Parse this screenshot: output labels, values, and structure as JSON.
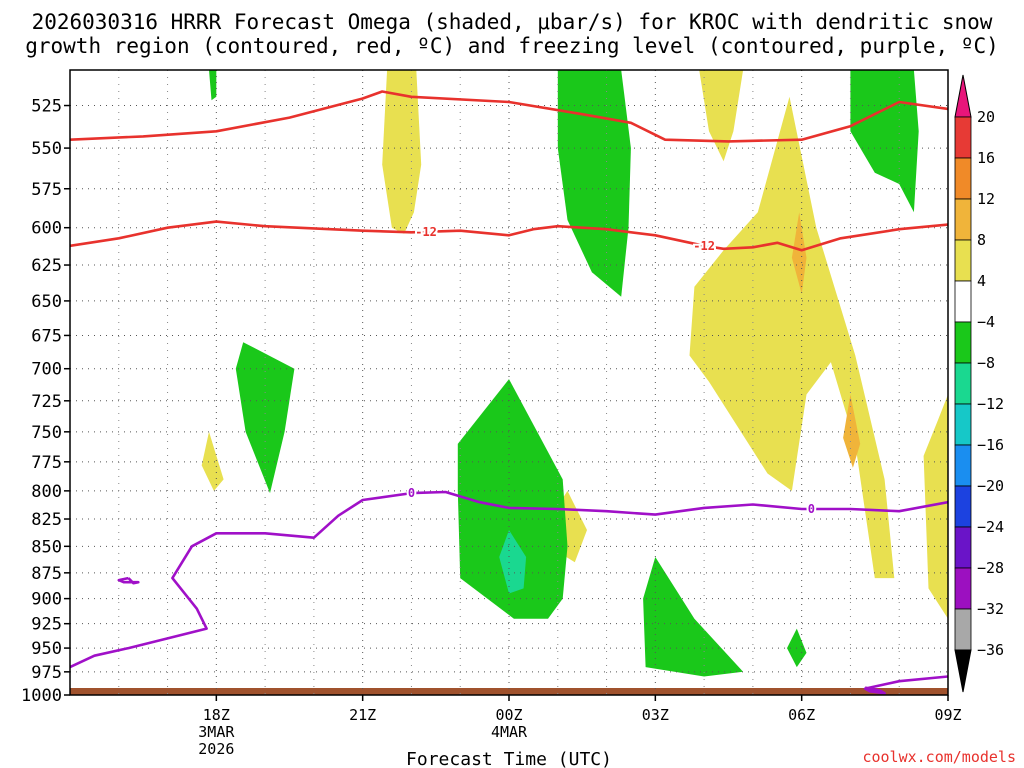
{
  "chart_data": {
    "type": "heatmap",
    "title_line1": "2026030316 HRRR Forecast Omega (shaded, μbar/s) for KROC with dendritic snow",
    "title_line2": "growth region (contoured, red, ºC) and freezing level (contoured, purple, ºC)",
    "xlabel": "Forecast Time (UTC)",
    "credit": "coolwx.com/models",
    "x_unit": "hours after 2026-03-03 15Z",
    "x_range": [
      0,
      18
    ],
    "y_unit": "hPa",
    "y_range": [
      1000,
      505
    ],
    "y_ticks": [
      525,
      550,
      575,
      600,
      625,
      650,
      675,
      700,
      725,
      750,
      775,
      800,
      825,
      850,
      875,
      900,
      925,
      950,
      975,
      1000
    ],
    "x_ticks": [
      {
        "x": 3,
        "lines": [
          "18Z",
          "3MAR",
          "2026"
        ]
      },
      {
        "x": 6,
        "lines": [
          "21Z"
        ]
      },
      {
        "x": 9,
        "lines": [
          "00Z",
          "4MAR"
        ]
      },
      {
        "x": 12,
        "lines": [
          "03Z"
        ]
      },
      {
        "x": 15,
        "lines": [
          "06Z"
        ]
      },
      {
        "x": 18,
        "lines": [
          "09Z"
        ]
      }
    ],
    "grid": true,
    "colorbar": {
      "labels": [
        "20",
        "16",
        "12",
        "8",
        "4",
        "−4",
        "−8",
        "−12",
        "−16",
        "−20",
        "−24",
        "−28",
        "−32",
        "−36"
      ],
      "colors": [
        "#e73a35",
        "#f08a28",
        "#f0b43a",
        "#e8e050",
        "#ffffff",
        "#1ac81a",
        "#1ad890",
        "#16c8c8",
        "#1a8ef0",
        "#1c42e0",
        "#6a14c8",
        "#9c10c0",
        "#a8a8a8"
      ],
      "top_arrow_color": "#e8157a",
      "bottom_arrow_color": "#000000"
    },
    "omega_regions": [
      {
        "level": 4,
        "color": "#e8e050",
        "points": [
          [
            6.5,
            505
          ],
          [
            7.1,
            505
          ],
          [
            7.2,
            560
          ],
          [
            7.05,
            590
          ],
          [
            6.85,
            604
          ],
          [
            6.6,
            600
          ],
          [
            6.4,
            560
          ]
        ]
      },
      {
        "level": 4,
        "color": "#e8e050",
        "points": [
          [
            12.9,
            505
          ],
          [
            13.8,
            505
          ],
          [
            13.6,
            540
          ],
          [
            13.4,
            558
          ],
          [
            13.1,
            540
          ]
        ]
      },
      {
        "level": 4,
        "color": "#e8e050",
        "points": [
          [
            14.75,
            520
          ],
          [
            15.3,
            600
          ],
          [
            16.1,
            690
          ],
          [
            16.7,
            790
          ],
          [
            16.9,
            880
          ],
          [
            16.5,
            880
          ],
          [
            16.1,
            760
          ],
          [
            15.6,
            695
          ],
          [
            15.1,
            720
          ],
          [
            14.8,
            800
          ],
          [
            14.3,
            785
          ],
          [
            13.1,
            710
          ],
          [
            12.7,
            690
          ],
          [
            12.8,
            640
          ],
          [
            13.4,
            615
          ],
          [
            14.1,
            590
          ]
        ]
      },
      {
        "level": 4,
        "color": "#e8e050",
        "points": [
          [
            18,
            720
          ],
          [
            18,
            920
          ],
          [
            17.6,
            890
          ],
          [
            17.5,
            770
          ],
          [
            17.8,
            740
          ]
        ]
      },
      {
        "level": 4,
        "color": "#e8e050",
        "points": [
          [
            10.2,
            800
          ],
          [
            10.6,
            835
          ],
          [
            10.35,
            865
          ],
          [
            10.0,
            855
          ],
          [
            9.9,
            820
          ]
        ]
      },
      {
        "level": 4,
        "color": "#e8e050",
        "points": [
          [
            2.85,
            750
          ],
          [
            3.15,
            790
          ],
          [
            2.95,
            800
          ],
          [
            2.7,
            778
          ]
        ]
      },
      {
        "level": 8,
        "color": "#f0b43a",
        "points": [
          [
            14.95,
            590
          ],
          [
            15.1,
            620
          ],
          [
            15.0,
            645
          ],
          [
            14.8,
            620
          ]
        ]
      },
      {
        "level": 8,
        "color": "#f0b43a",
        "points": [
          [
            16.0,
            720
          ],
          [
            16.2,
            760
          ],
          [
            16.05,
            780
          ],
          [
            15.85,
            755
          ]
        ]
      },
      {
        "level": -4,
        "color": "#1ac81a",
        "points": [
          [
            10,
            505
          ],
          [
            11.3,
            505
          ],
          [
            11.5,
            550
          ],
          [
            11.45,
            600
          ],
          [
            11.3,
            647
          ],
          [
            10.7,
            630
          ],
          [
            10.2,
            595
          ],
          [
            10,
            550
          ]
        ]
      },
      {
        "level": -4,
        "color": "#1ac81a",
        "points": [
          [
            16.0,
            505
          ],
          [
            17.3,
            505
          ],
          [
            17.4,
            540
          ],
          [
            17.3,
            590
          ],
          [
            17.0,
            572
          ],
          [
            16.5,
            565
          ],
          [
            16.0,
            540
          ]
        ]
      },
      {
        "level": -4,
        "color": "#1ac81a",
        "points": [
          [
            3.55,
            680
          ],
          [
            4.6,
            700
          ],
          [
            4.4,
            750
          ],
          [
            4.1,
            802
          ],
          [
            3.6,
            750
          ],
          [
            3.4,
            700
          ]
        ]
      },
      {
        "level": -4,
        "color": "#1ac81a",
        "points": [
          [
            9.0,
            708
          ],
          [
            10.1,
            790
          ],
          [
            10.2,
            850
          ],
          [
            10.1,
            900
          ],
          [
            9.8,
            920
          ],
          [
            9.1,
            920
          ],
          [
            8.0,
            880
          ],
          [
            7.95,
            800
          ],
          [
            7.95,
            760
          ]
        ]
      },
      {
        "level": -4,
        "color": "#1ac81a",
        "points": [
          [
            12.0,
            860
          ],
          [
            12.8,
            920
          ],
          [
            13.8,
            975
          ],
          [
            13.0,
            980
          ],
          [
            11.8,
            970
          ],
          [
            11.75,
            900
          ]
        ]
      },
      {
        "level": -4,
        "color": "#1ac81a",
        "points": [
          [
            14.9,
            930
          ],
          [
            15.1,
            955
          ],
          [
            14.9,
            970
          ],
          [
            14.7,
            950
          ]
        ]
      },
      {
        "level": -4,
        "color": "#1ac81a",
        "points": [
          [
            2.85,
            505
          ],
          [
            3.0,
            505
          ],
          [
            3.0,
            520
          ],
          [
            2.9,
            522
          ]
        ]
      },
      {
        "level": -8,
        "color": "#1ad890",
        "points": [
          [
            9.0,
            835
          ],
          [
            9.35,
            860
          ],
          [
            9.3,
            890
          ],
          [
            9.0,
            895
          ],
          [
            8.8,
            860
          ]
        ]
      }
    ],
    "dendritic_contours": [
      {
        "label": "-12",
        "color": "#e8322d",
        "points": [
          [
            0,
            545
          ],
          [
            1.5,
            543
          ],
          [
            3,
            540
          ],
          [
            4.5,
            532
          ],
          [
            6,
            521
          ],
          [
            6.4,
            517
          ],
          [
            7,
            520
          ],
          [
            9,
            523
          ],
          [
            10.5,
            530
          ],
          [
            11.5,
            535
          ],
          [
            12.2,
            545
          ],
          [
            13.5,
            546
          ],
          [
            15,
            545
          ],
          [
            16,
            537
          ],
          [
            17,
            523
          ],
          [
            18,
            527
          ]
        ]
      },
      {
        "label": "-12",
        "color": "#e8322d",
        "label_x": 7.3,
        "points": [
          [
            0,
            612
          ],
          [
            1,
            607
          ],
          [
            2,
            600
          ],
          [
            3,
            596
          ],
          [
            4,
            599
          ],
          [
            6,
            602
          ],
          [
            7,
            603
          ],
          [
            8,
            602
          ],
          [
            9,
            605
          ],
          [
            9.5,
            601
          ],
          [
            10,
            599
          ],
          [
            11,
            601
          ],
          [
            12,
            605
          ],
          [
            13,
            612
          ],
          [
            13.4,
            614
          ],
          [
            14,
            613
          ],
          [
            14.5,
            610
          ],
          [
            15,
            615
          ],
          [
            15.8,
            607
          ],
          [
            17,
            601
          ],
          [
            18,
            598
          ]
        ]
      },
      {
        "label": "-12",
        "color": "#e8322d",
        "label_x": 13.0,
        "points": []
      }
    ],
    "freezing_contours": [
      {
        "label": "0",
        "color": "#a010c8",
        "label_x": 7.0,
        "points": [
          [
            0,
            970
          ],
          [
            0.5,
            958
          ],
          [
            1.2,
            950
          ],
          [
            2,
            940
          ],
          [
            2.8,
            930
          ],
          [
            2.6,
            910
          ],
          [
            2.1,
            880
          ],
          [
            2.5,
            850
          ],
          [
            3,
            838
          ],
          [
            4,
            838
          ],
          [
            5,
            842
          ],
          [
            5.5,
            822
          ],
          [
            6,
            808
          ],
          [
            7,
            802
          ],
          [
            7.7,
            801
          ],
          [
            8.4,
            810
          ],
          [
            9,
            815
          ],
          [
            10,
            816
          ],
          [
            11,
            818
          ],
          [
            12,
            821
          ],
          [
            13,
            815
          ],
          [
            14,
            812
          ],
          [
            15,
            816
          ],
          [
            16,
            816
          ],
          [
            17,
            818
          ],
          [
            18,
            810
          ]
        ]
      },
      {
        "label": "0",
        "color": "#a010c8",
        "label_x": 15.2,
        "points": []
      },
      {
        "label": "",
        "color": "#a010c8",
        "points": [
          [
            1.2,
            880
          ],
          [
            1.3,
            885
          ],
          [
            1.4,
            884
          ],
          [
            1.1,
            884
          ],
          [
            1.0,
            882
          ],
          [
            1.2,
            880
          ]
        ]
      },
      {
        "label": "",
        "color": "#a010c8",
        "points": [
          [
            16.3,
            992
          ],
          [
            16.6,
            995
          ],
          [
            16.7,
            998
          ],
          [
            16.4,
            996
          ],
          [
            16.3,
            993
          ],
          [
            17,
            985
          ],
          [
            18,
            980
          ]
        ]
      }
    ],
    "ground_color": "#a0522d"
  }
}
